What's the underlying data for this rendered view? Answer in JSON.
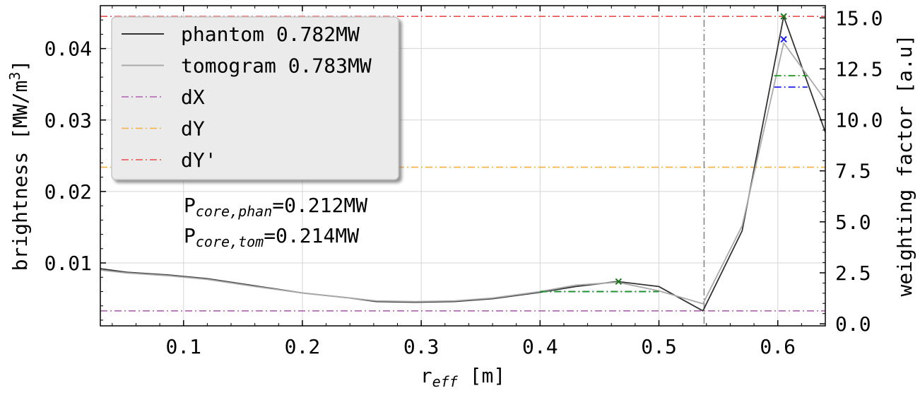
{
  "chart_data": {
    "type": "line",
    "title": "",
    "xlabel": "r",
    "xlabel_sub": "eff",
    "xlabel_unit": " [m]",
    "ylabel": "brightness [MW/m",
    "ylabel_sup": "3",
    "ylabel_end": "]",
    "y2label": "weighting factor [a.u]",
    "xlim": [
      0.03,
      0.64
    ],
    "ylim": [
      0.0012,
      0.046
    ],
    "y2lim": [
      -0.1,
      15.6
    ],
    "xticks": [
      0.1,
      0.2,
      0.3,
      0.4,
      0.5,
      0.6
    ],
    "xtick_labels": [
      "0.1",
      "0.2",
      "0.3",
      "0.4",
      "0.5",
      "0.6"
    ],
    "yticks": [
      0.01,
      0.02,
      0.03,
      0.04
    ],
    "ytick_labels": [
      "0.01",
      "0.02",
      "0.03",
      "0.04"
    ],
    "y2ticks": [
      0.0,
      2.5,
      5.0,
      7.5,
      10.0,
      12.5,
      15.0
    ],
    "y2tick_labels": [
      "0.0",
      "2.5",
      "5.0",
      "7.5",
      "10.0",
      "12.5",
      "15.0"
    ],
    "grid": true,
    "legend_position": "top-left",
    "series": [
      {
        "name": "phantom 0.782MW",
        "color": "#333333",
        "style": "solid",
        "axis": "left",
        "x": [
          0.03,
          0.052,
          0.088,
          0.12,
          0.16,
          0.2,
          0.24,
          0.262,
          0.295,
          0.328,
          0.36,
          0.4,
          0.43,
          0.465,
          0.5,
          0.537,
          0.57,
          0.605,
          0.64
        ],
        "y": [
          0.0092,
          0.0087,
          0.0083,
          0.0078,
          0.0068,
          0.0058,
          0.0051,
          0.0046,
          0.0045,
          0.0046,
          0.005,
          0.0059,
          0.0067,
          0.0074,
          0.0067,
          0.0033,
          0.0145,
          0.0445,
          0.0283
        ]
      },
      {
        "name": "tomogram 0.783MW",
        "color": "#aaaaaa",
        "style": "solid",
        "axis": "left",
        "x": [
          0.03,
          0.052,
          0.088,
          0.12,
          0.16,
          0.2,
          0.24,
          0.262,
          0.295,
          0.328,
          0.36,
          0.4,
          0.43,
          0.465,
          0.5,
          0.537,
          0.57,
          0.605,
          0.64
        ],
        "y": [
          0.009,
          0.0086,
          0.0082,
          0.0077,
          0.0067,
          0.0058,
          0.0051,
          0.0047,
          0.0046,
          0.0047,
          0.0051,
          0.006,
          0.0069,
          0.0073,
          0.0061,
          0.0043,
          0.0152,
          0.0408,
          0.0328
        ]
      },
      {
        "name": "dX",
        "color": "#b060b0",
        "style": "dashdot",
        "axis": "left",
        "hline": 0.0033
      },
      {
        "name": "dY",
        "color": "#f5b041",
        "style": "dashdot",
        "axis": "left",
        "hline": 0.0234
      },
      {
        "name": "dY'",
        "color": "#e8504e",
        "style": "dashdot",
        "axis": "left",
        "hline": 0.0445
      }
    ],
    "vline": {
      "x": 0.538,
      "color": "#888888"
    },
    "markers": [
      {
        "x": 0.466,
        "y": 0.0074,
        "color": "#1a7a1a"
      },
      {
        "x": 0.605,
        "y": 0.0445,
        "color": "#1a7a1a"
      },
      {
        "x": 0.605,
        "y": 0.0413,
        "color": "#1a1aee"
      }
    ],
    "segments": [
      {
        "x0": 0.4,
        "x1": 0.5,
        "y": 0.006,
        "color": "#1a1aee"
      },
      {
        "x0": 0.4,
        "x1": 0.5,
        "y": 0.006,
        "color": "#1a9a1a"
      },
      {
        "x0": 0.597,
        "x1": 0.625,
        "y": 0.0362,
        "color": "#1a9a1a"
      },
      {
        "x0": 0.597,
        "x1": 0.625,
        "y": 0.0346,
        "color": "#1a1aee"
      }
    ],
    "annotations": [
      {
        "main": "P",
        "sub": "core,phan",
        "rest": "=0.212MW"
      },
      {
        "main": "P",
        "sub": "core,tom",
        "rest": "=0.214MW"
      }
    ]
  }
}
